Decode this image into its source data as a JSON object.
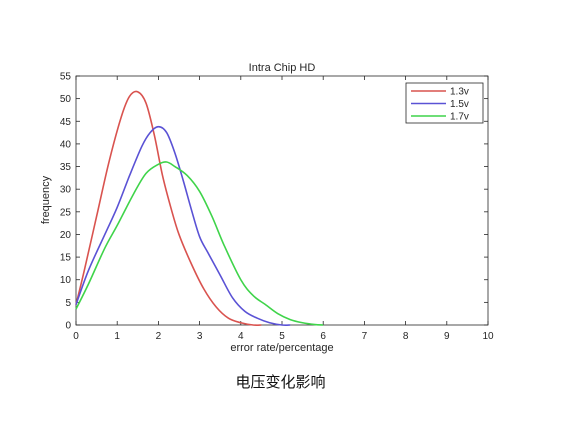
{
  "caption": "电压变化影响",
  "chart_data": {
    "type": "line",
    "title": "Intra Chip HD",
    "xlabel": "error rate/percentage",
    "ylabel": "frequency",
    "xlim": [
      0,
      10
    ],
    "ylim": [
      0,
      55
    ],
    "xticks": [
      0,
      1,
      2,
      3,
      4,
      5,
      6,
      7,
      8,
      9,
      10
    ],
    "yticks": [
      0,
      5,
      10,
      15,
      20,
      25,
      30,
      35,
      40,
      45,
      50,
      55
    ],
    "grid": false,
    "legend_position": "top-right",
    "series": [
      {
        "name": "1.3v",
        "color": "#d9534f",
        "x": [
          0,
          0.2,
          0.5,
          0.8,
          1.1,
          1.3,
          1.5,
          1.7,
          1.9,
          2.1,
          2.3,
          2.5,
          2.8,
          3.1,
          3.4,
          3.7,
          4.0,
          4.3,
          4.5
        ],
        "y": [
          4.5,
          12,
          24,
          36,
          46,
          50.5,
          51.5,
          49,
          42,
          33,
          26,
          20,
          13.5,
          8,
          4,
          1.5,
          0.5,
          0,
          0
        ]
      },
      {
        "name": "1.5v",
        "color": "#5a52d5",
        "x": [
          0,
          0.3,
          0.7,
          1.0,
          1.3,
          1.6,
          1.8,
          2.0,
          2.2,
          2.4,
          2.6,
          2.8,
          3.0,
          3.2,
          3.5,
          3.8,
          4.1,
          4.4,
          4.7,
          5.0,
          5.2
        ],
        "y": [
          4.5,
          12,
          20,
          26,
          33,
          39.5,
          42.5,
          43.8,
          42.5,
          38,
          32,
          25.5,
          19.5,
          16,
          11,
          6,
          3,
          1.5,
          0.5,
          0,
          0
        ]
      },
      {
        "name": "1.7v",
        "color": "#3fd44a",
        "x": [
          0,
          0.3,
          0.7,
          1.0,
          1.4,
          1.7,
          2.0,
          2.2,
          2.4,
          2.7,
          3.0,
          3.3,
          3.6,
          4.0,
          4.3,
          4.6,
          4.9,
          5.2,
          5.5,
          5.8,
          6.0
        ],
        "y": [
          3.5,
          9,
          17,
          22,
          29,
          33.5,
          35.5,
          36,
          35,
          33,
          29.5,
          24,
          17.5,
          10,
          6.5,
          4.5,
          2.5,
          1.2,
          0.5,
          0.1,
          0
        ]
      }
    ]
  }
}
